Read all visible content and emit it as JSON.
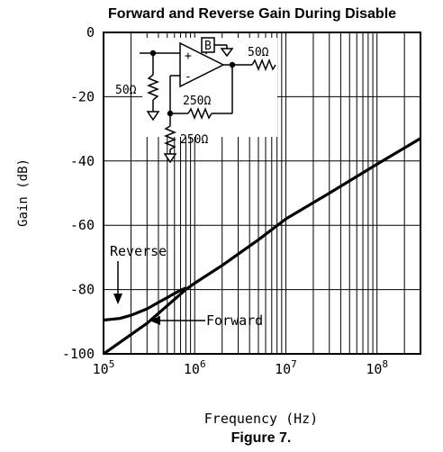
{
  "figure_caption": "Figure 7.",
  "chart_data": {
    "type": "line",
    "title": "Forward and Reverse Gain During Disable",
    "xlabel": "Frequency (Hz)",
    "ylabel": "Gain (dB)",
    "x_scale": "log",
    "xlim": [
      100000,
      300000000
    ],
    "ylim": [
      -100,
      0
    ],
    "grid": true,
    "x_ticks": [
      {
        "value": 100000,
        "base": "10",
        "exp": "5"
      },
      {
        "value": 1000000,
        "base": "10",
        "exp": "6"
      },
      {
        "value": 10000000,
        "base": "10",
        "exp": "7"
      },
      {
        "value": 100000000,
        "base": "10",
        "exp": "8"
      }
    ],
    "y_ticks": [
      {
        "value": 0,
        "label": "0"
      },
      {
        "value": -20,
        "label": "-20"
      },
      {
        "value": -40,
        "label": "-40"
      },
      {
        "value": -60,
        "label": "-60"
      },
      {
        "value": -80,
        "label": "-80"
      },
      {
        "value": -100,
        "label": "-100"
      }
    ],
    "series": [
      {
        "name": "Reverse",
        "x": [
          100000,
          150000,
          200000,
          300000,
          400000,
          500000,
          600000,
          700000,
          800000
        ],
        "y": [
          -89.5,
          -89,
          -88,
          -86,
          -84,
          -82.5,
          -81.2,
          -80.2,
          -79.5
        ]
      },
      {
        "name": "Forward",
        "x": [
          100000,
          200000,
          300000,
          500000,
          800000,
          1000000,
          2000000,
          5000000,
          10000000,
          30000000,
          100000000,
          300000000
        ],
        "y": [
          -100,
          -94,
          -90.5,
          -85,
          -80,
          -78,
          -72.5,
          -64.5,
          -58,
          -50,
          -41,
          -33
        ]
      }
    ],
    "annotations": [
      {
        "text": "Reverse",
        "target": "Reverse"
      },
      {
        "text": "Forward",
        "target": "Forward"
      }
    ],
    "inset_schematic": {
      "labels": [
        "B",
        "+",
        "-",
        "50Ω",
        "50Ω",
        "250Ω",
        "250Ω"
      ]
    }
  }
}
